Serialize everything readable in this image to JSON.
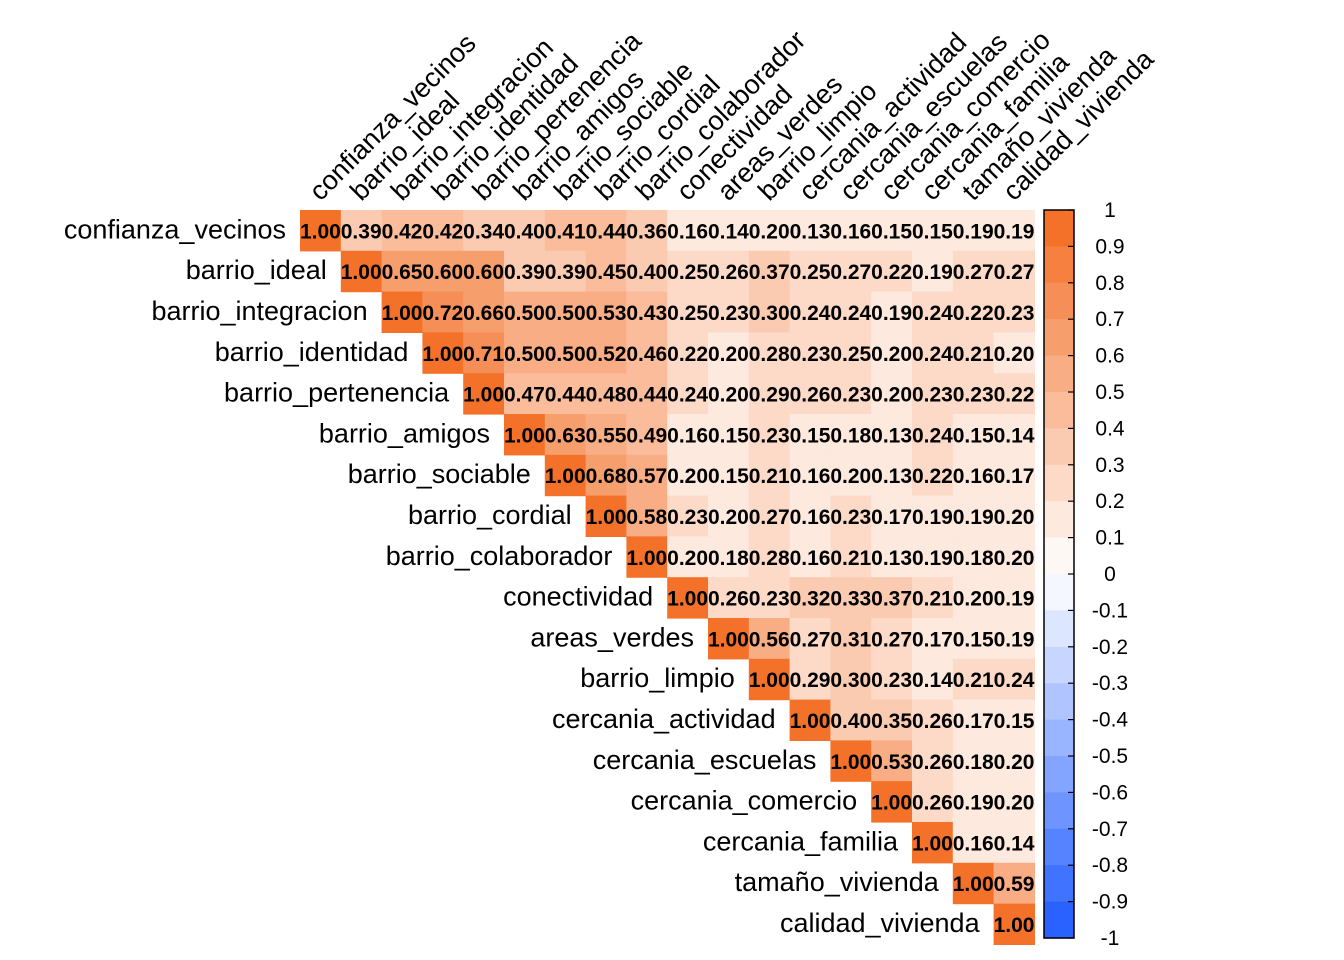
{
  "chart_data": {
    "type": "heatmap",
    "variables": [
      "confianza_vecinos",
      "barrio_ideal",
      "barrio_integracion",
      "barrio_identidad",
      "barrio_pertenencia",
      "barrio_amigos",
      "barrio_sociable",
      "barrio_cordial",
      "barrio_colaborador",
      "conectividad",
      "areas_verdes",
      "barrio_limpio",
      "cercania_actividad",
      "cercania_escuelas",
      "cercania_comercio",
      "cercania_familia",
      "tamaño_vivienda",
      "calidad_vivienda"
    ],
    "upper_triangle_rows": [
      [
        1.0,
        0.39,
        0.42,
        0.42,
        0.34,
        0.4,
        0.41,
        0.44,
        0.36,
        0.16,
        0.14,
        0.2,
        0.13,
        0.16,
        0.15,
        0.15,
        0.19,
        0.19
      ],
      [
        1.0,
        0.65,
        0.6,
        0.6,
        0.39,
        0.39,
        0.45,
        0.4,
        0.25,
        0.26,
        0.37,
        0.25,
        0.27,
        0.22,
        0.19,
        0.27,
        0.27
      ],
      [
        1.0,
        0.72,
        0.66,
        0.5,
        0.5,
        0.53,
        0.43,
        0.25,
        0.23,
        0.3,
        0.24,
        0.24,
        0.19,
        0.24,
        0.22,
        0.23
      ],
      [
        1.0,
        0.71,
        0.5,
        0.5,
        0.52,
        0.46,
        0.22,
        0.2,
        0.28,
        0.23,
        0.25,
        0.2,
        0.24,
        0.21,
        0.2
      ],
      [
        1.0,
        0.47,
        0.44,
        0.48,
        0.44,
        0.24,
        0.2,
        0.29,
        0.26,
        0.23,
        0.2,
        0.23,
        0.23,
        0.22
      ],
      [
        1.0,
        0.63,
        0.55,
        0.49,
        0.16,
        0.15,
        0.23,
        0.15,
        0.18,
        0.13,
        0.24,
        0.15,
        0.14
      ],
      [
        1.0,
        0.68,
        0.57,
        0.2,
        0.15,
        0.21,
        0.16,
        0.2,
        0.13,
        0.22,
        0.16,
        0.17
      ],
      [
        1.0,
        0.58,
        0.23,
        0.2,
        0.27,
        0.16,
        0.23,
        0.17,
        0.19,
        0.19,
        0.2
      ],
      [
        1.0,
        0.2,
        0.18,
        0.28,
        0.16,
        0.21,
        0.13,
        0.19,
        0.18,
        0.2
      ],
      [
        1.0,
        0.26,
        0.23,
        0.32,
        0.33,
        0.37,
        0.21,
        0.2,
        0.19
      ],
      [
        1.0,
        0.56,
        0.27,
        0.31,
        0.27,
        0.17,
        0.15,
        0.19
      ],
      [
        1.0,
        0.29,
        0.3,
        0.23,
        0.14,
        0.21,
        0.24
      ],
      [
        1.0,
        0.4,
        0.35,
        0.26,
        0.17,
        0.15
      ],
      [
        1.0,
        0.53,
        0.26,
        0.18,
        0.2
      ],
      [
        1.0,
        0.26,
        0.19,
        0.2
      ],
      [
        1.0,
        0.16,
        0.14
      ],
      [
        1.0,
        0.59
      ],
      [
        1.0
      ]
    ],
    "value_format": "2 decimals",
    "color_scale": {
      "range": [
        -1,
        1
      ],
      "negative_color": "#2962FF",
      "zero_color": "#FFFFFF",
      "positive_color": "#F4712A",
      "bins": 20
    },
    "legend": {
      "placement": "right",
      "ticks": [
        1,
        0.9,
        0.8,
        0.7,
        0.6,
        0.5,
        0.4,
        0.3,
        0.2,
        0.1,
        0,
        -0.1,
        -0.2,
        -0.3,
        -0.4,
        -0.5,
        -0.6,
        -0.7,
        -0.8,
        -0.9,
        -1
      ]
    },
    "layout": "upper",
    "grid": false
  }
}
